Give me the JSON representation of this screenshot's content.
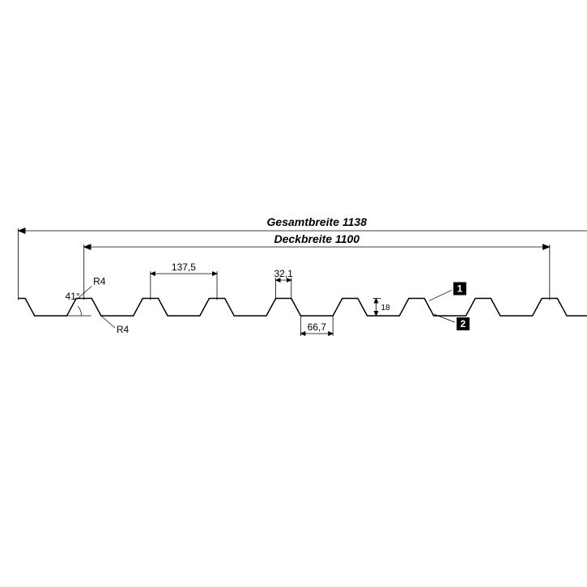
{
  "diagram": {
    "type": "technical-profile",
    "background_color": "#ffffff",
    "stroke_color": "#000000",
    "profile_stroke_width": 1.5,
    "dim_stroke_width": 0.8,
    "gesamtbreite": {
      "label": "Gesamtbreite 1138",
      "value": 1138
    },
    "deckbreite": {
      "label": "Deckbreite 1100",
      "value": 1100
    },
    "pitch": {
      "label": "137,5",
      "value": 137.5
    },
    "crest_width": {
      "label": "32,1",
      "value": 32.1
    },
    "valley_width": {
      "label": "66,7",
      "value": 66.7
    },
    "height": {
      "label": "18",
      "value": 18
    },
    "angle": {
      "label": "41°",
      "value": 41
    },
    "radius_top": {
      "label": "R4"
    },
    "radius_bottom": {
      "label": "R4"
    },
    "badges": {
      "one": "1",
      "two": "2"
    },
    "fontsize": {
      "main_dim": 14,
      "sub_dim": 12,
      "small": 10,
      "badge": 12
    },
    "badge_fill": "#000000"
  }
}
